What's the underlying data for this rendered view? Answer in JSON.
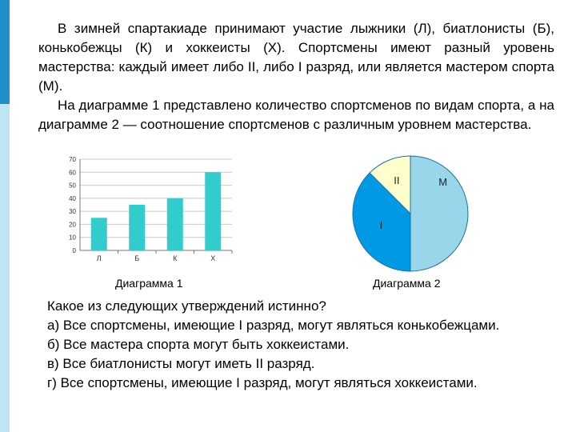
{
  "intro": {
    "p1": "В зимней спартакиаде принимают участие лыжники (Л), биатлонисты (Б), конькобежцы (К) и хоккеисты (Х). Спортсмены имеют разный уровень мастерства: каждый имеет либо II, либо I разряд, или является мастером спорта (М).",
    "p2": "На диаграмме 1 представлено количество спортсменов по видам спорта, а на диаграмме 2 — соотношение спортсменов с различным уровнем мастерства."
  },
  "captions": {
    "chart1": "Диаграмма 1",
    "chart2": "Диаграмма 2"
  },
  "question": {
    "prompt": "Какое из следующих утверждений истинно?",
    "options": [
      "а) Все спортсмены, имеющие I разряд, могут являться конькобежцами.",
      "б) Все мастера спорта могут быть хоккеистами.",
      "в) Все биатлонисты могут иметь II разряд.",
      "г) Все спортсмены, имеющие I разряд, могут являться хоккеистами."
    ]
  },
  "colors": {
    "accent_dark": "#1e8fc9",
    "accent_light": "#bfe4f5",
    "bar": "#33cccc",
    "pie_m": "#99d6ea",
    "pie_i": "#0099e6",
    "pie_ii": "#ffffcc"
  },
  "chart_data": [
    {
      "type": "bar",
      "categories": [
        "Л",
        "Б",
        "К",
        "Х"
      ],
      "values": [
        25,
        35,
        40,
        60
      ],
      "yticks": [
        0,
        10,
        20,
        30,
        40,
        50,
        60,
        70
      ],
      "ylim": [
        0,
        70
      ],
      "grid": true
    },
    {
      "type": "pie",
      "labels": [
        "М",
        "I",
        "II"
      ],
      "values": [
        50,
        37.5,
        12.5
      ]
    }
  ]
}
